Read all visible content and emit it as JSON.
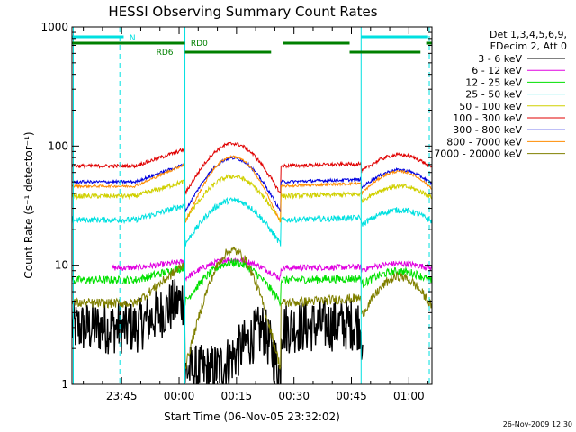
{
  "chart_data": {
    "type": "line",
    "title": "HESSI Observing Summary Count Rates",
    "xlabel": "Start Time (06-Nov-05 23:32:02)",
    "ylabel": "Count Rate (s⁻¹ detector⁻¹)",
    "y_scale": "log",
    "ylim": [
      1,
      1000
    ],
    "y_ticks": [
      "1",
      "10",
      "100",
      "1000"
    ],
    "x_range_minutes": [
      0,
      94
    ],
    "x_ticks": [
      {
        "label": "23:45",
        "t": 12.97
      },
      {
        "label": "00:00",
        "t": 27.97
      },
      {
        "label": "00:15",
        "t": 42.97
      },
      {
        "label": "00:30",
        "t": 57.97
      },
      {
        "label": "00:45",
        "t": 72.97
      },
      {
        "label": "01:00",
        "t": 87.97
      }
    ],
    "legend_header": [
      "Det 1,3,4,5,6,9,",
      "FDecim 2, Att 0"
    ],
    "series": [
      {
        "name": "3 - 6 keV",
        "color": "#000000"
      },
      {
        "name": "6 - 12 keV",
        "color": "#e000e0"
      },
      {
        "name": "12 - 25 keV",
        "color": "#00e000"
      },
      {
        "name": "25 - 50 keV",
        "color": "#00e0e0"
      },
      {
        "name": "50 - 100 keV",
        "color": "#d0d000"
      },
      {
        "name": "100 - 300 keV",
        "color": "#e00000"
      },
      {
        "name": "300 - 800 keV",
        "color": "#0000e0"
      },
      {
        "name": "800 - 7000 keV",
        "color": "#ff8c00"
      },
      {
        "name": "7000 - 20000 keV",
        "color": "#808000"
      }
    ],
    "annotations": [
      {
        "label": "N",
        "color": "#00e0e0"
      },
      {
        "label": "RD0",
        "color": "#008000"
      },
      {
        "label": "RD6",
        "color": "#008000"
      }
    ],
    "footer_date": "26-Nov-2009 12:30"
  }
}
